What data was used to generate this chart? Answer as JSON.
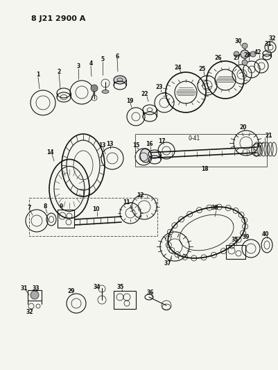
{
  "title": "8 J21 2900 A",
  "bg_color": "#f0f0f0",
  "line_color": "#1a1a1a",
  "fig_width": 4.01,
  "fig_height": 5.33,
  "dpi": 100
}
